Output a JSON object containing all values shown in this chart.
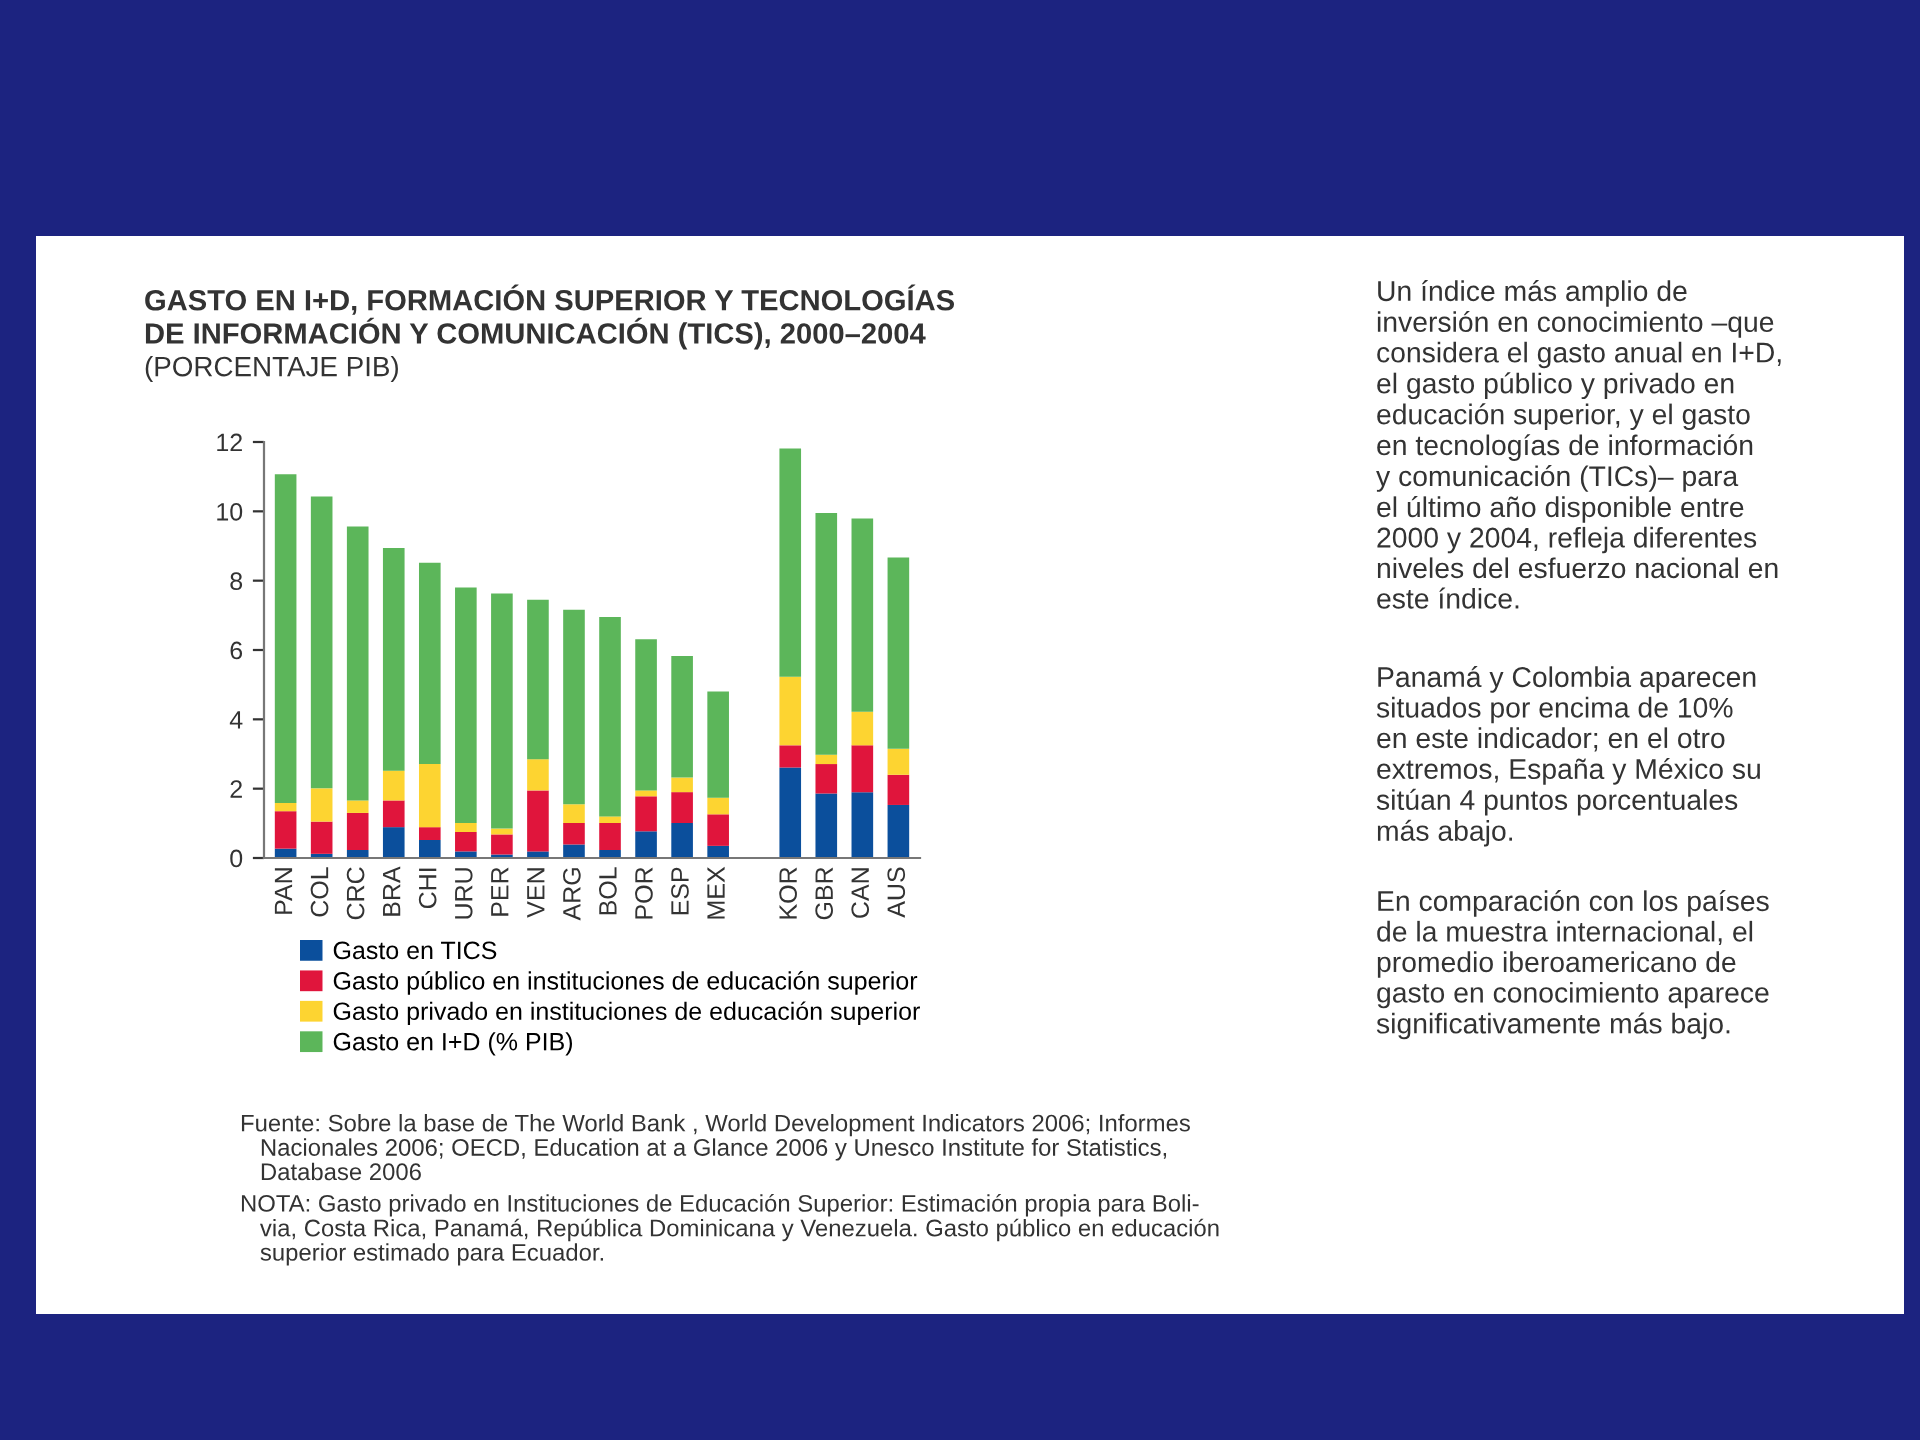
{
  "chart_data": {
    "type": "bar",
    "stacked": true,
    "title": "GASTO EN I+D, FORMACIÓN SUPERIOR Y TECNOLOGÍAS\nDE INFORMACIÓN Y COMUNICACIÓN (TICS), 2000–2004",
    "subtitle": "(PORCENTAJE PIB)",
    "categories": [
      "PAN",
      "COL",
      "CRC",
      "BRA",
      "CHI",
      "URU",
      "PER",
      "VEN",
      "ARG",
      "BOL",
      "POR",
      "ESP",
      "MEX",
      null,
      "KOR",
      "GBR",
      "CAN",
      "AUS"
    ],
    "series": [
      {
        "name": "Gasto en TICS",
        "color": "#0b4f9c",
        "values": [
          0.27,
          0.12,
          0.23,
          0.89,
          0.52,
          0.19,
          0.1,
          0.19,
          0.39,
          0.23,
          0.77,
          1.01,
          0.35,
          null,
          2.61,
          1.86,
          1.9,
          1.53
        ]
      },
      {
        "name": "Gasto público en instituciones de educación superior",
        "color": "#e0153c",
        "values": [
          1.08,
          0.93,
          1.07,
          0.77,
          0.37,
          0.56,
          0.58,
          1.76,
          0.62,
          0.78,
          1.01,
          0.89,
          0.91,
          null,
          0.64,
          0.85,
          1.35,
          0.87
        ]
      },
      {
        "name": "Gasto privado en instituciones de educación superior",
        "color": "#fdd431",
        "values": [
          0.24,
          0.96,
          0.36,
          0.86,
          1.82,
          0.26,
          0.17,
          0.9,
          0.54,
          0.19,
          0.17,
          0.42,
          0.48,
          null,
          1.98,
          0.27,
          0.97,
          0.75
        ]
      },
      {
        "name": "Gasto en I+D (% PIB)",
        "color": "#5cb65a",
        "values": [
          9.48,
          8.42,
          7.9,
          6.42,
          5.81,
          6.79,
          6.78,
          4.6,
          5.61,
          5.75,
          4.36,
          3.51,
          3.06,
          null,
          6.58,
          6.97,
          5.57,
          5.52
        ]
      }
    ],
    "ylim": [
      0,
      12
    ],
    "yticks": [
      0,
      2,
      4,
      6,
      8,
      10,
      12
    ],
    "grid": false,
    "legend": "bottom",
    "annotations": [
      "Fuente: Sobre la base de The World Bank , World Development Indicators 2006; Informes\n   Nacionales 2006; OECD, Education at a Glance 2006 y Unesco Institute for Statistics,\n   Database 2006",
      "NOTA: Gasto privado en Instituciones de Educación Superior: Estimación propia para Boli-\n   via, Costa Rica, Panamá, República Dominicana y Venezuela. Gasto público en educación\n   superior estimado para Ecuador.",
      "Un índice más amplio de\ninversión en conocimiento –que\nconsidera el gasto anual en I+D,\nel gasto público y privado en\neducación superior, y el gasto\nen tecnologías de información\ny comunicación (TICs)– para\nel último año disponible entre\n2000 y 2004, refleja diferentes\nniveles del esfuerzo nacional en\neste índice.",
      "Panamá y Colombia aparecen\nsituados por encima de 10%\nen este indicador; en el otro\nextremos, España y México su\nsitúan 4 puntos porcentuales\nmás abajo.",
      "En comparación con los países\nde la muestra internacional, el\npromedio iberoamericano de\ngasto en conocimiento aparece\nsignificativamente más bajo."
    ]
  }
}
